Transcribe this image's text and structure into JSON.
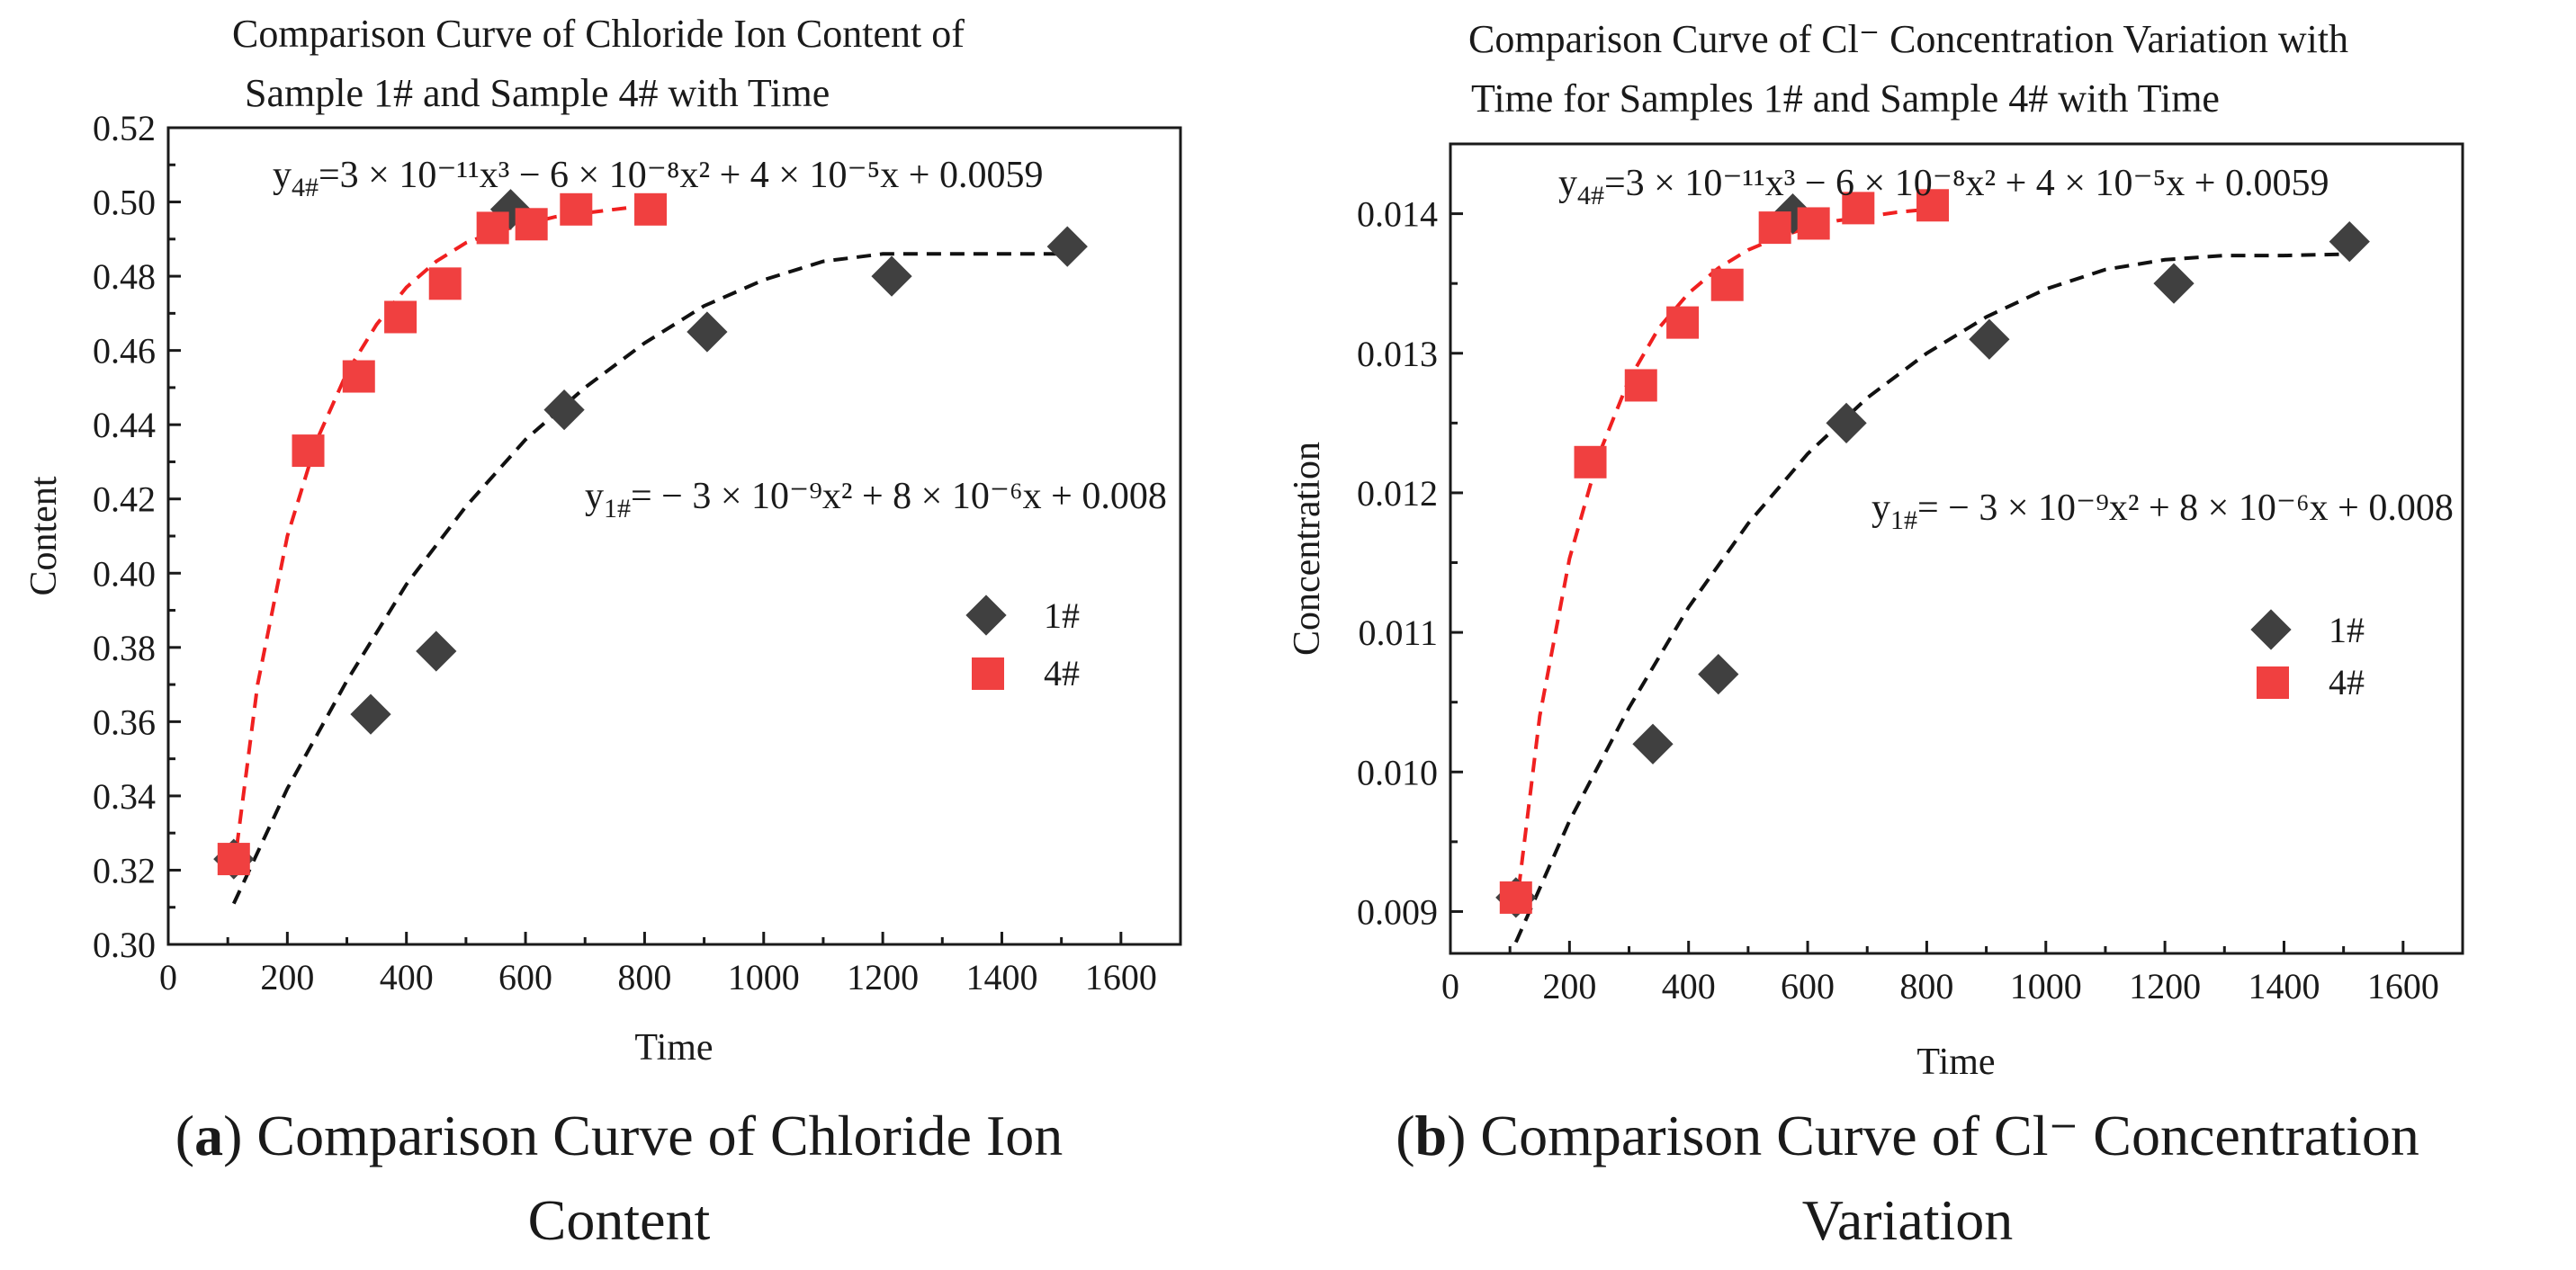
{
  "colors": {
    "series_1": "#404040",
    "series_4": "#f04040",
    "fit_1": "#111111",
    "fit_4": "#f02020",
    "axis": "#1a1a1a"
  },
  "chart_data": [
    {
      "type": "scatter",
      "title_lines": [
        "Comparison Curve of Chloride Ion Content of",
        "Sample 1# and Sample 4# with Time"
      ],
      "xlabel": "Time",
      "ylabel": "Content",
      "xlim": [
        0,
        1700
      ],
      "ylim": [
        0.3,
        0.52
      ],
      "xticks": [
        0,
        200,
        400,
        600,
        800,
        1000,
        1200,
        1400,
        1600
      ],
      "yticks": [
        0.3,
        0.32,
        0.34,
        0.36,
        0.38,
        0.4,
        0.42,
        0.44,
        0.46,
        0.48,
        0.5,
        0.52
      ],
      "ytick_decimals": 2,
      "grid": false,
      "legend_placement": "right",
      "legend": [
        "1#",
        "4#"
      ],
      "series": [
        {
          "name": "1#",
          "marker": "diamond",
          "x": [
            110,
            340,
            450,
            575,
            665,
            905,
            1215,
            1510
          ],
          "y": [
            0.323,
            0.362,
            0.379,
            0.498,
            0.444,
            0.465,
            0.48,
            0.488
          ]
        },
        {
          "name": "4#",
          "marker": "square",
          "x": [
            110,
            235,
            320,
            390,
            465,
            545,
            610,
            685,
            810
          ],
          "y": [
            0.323,
            0.433,
            0.453,
            0.469,
            0.478,
            0.493,
            0.494,
            0.498,
            0.498
          ]
        }
      ],
      "fits": [
        {
          "series": "4#",
          "x": [
            110,
            150,
            200,
            250,
            300,
            350,
            400,
            450,
            500,
            550,
            600,
            650,
            700,
            750,
            800
          ],
          "y": [
            0.32,
            0.37,
            0.41,
            0.436,
            0.454,
            0.467,
            0.477,
            0.484,
            0.489,
            0.492,
            0.494,
            0.496,
            0.497,
            0.498,
            0.499
          ]
        },
        {
          "series": "1#",
          "x": [
            110,
            200,
            300,
            400,
            500,
            600,
            700,
            800,
            900,
            1000,
            1100,
            1200,
            1300,
            1400,
            1500
          ],
          "y": [
            0.311,
            0.342,
            0.371,
            0.397,
            0.418,
            0.436,
            0.45,
            0.462,
            0.472,
            0.479,
            0.484,
            0.486,
            0.486,
            0.486,
            0.486
          ]
        }
      ],
      "equations": {
        "eq4": {
          "prefix": "y",
          "sub": "4#",
          "text": "=3 × 10⁻¹¹x³ − 6 × 10⁻⁸x² + 4 × 10⁻⁵x + 0.0059"
        },
        "eq1": {
          "prefix": "y",
          "sub": "1#",
          "text": "= − 3 × 10⁻⁹x² + 8 × 10⁻⁶x + 0.008"
        }
      },
      "caption": {
        "label": "a",
        "line1": " Comparison Curve of Chloride Ion",
        "line2": "Content"
      }
    },
    {
      "type": "scatter",
      "title_lines": [
        "Comparison Curve of Cl⁻ Concentration Variation with",
        "Time for Samples 1# and Sample 4# with Time"
      ],
      "xlabel": "Time",
      "ylabel": "Concentration",
      "xlim": [
        0,
        1700
      ],
      "ylim": [
        0.0087,
        0.0145
      ],
      "xticks": [
        0,
        200,
        400,
        600,
        800,
        1000,
        1200,
        1400,
        1600
      ],
      "yticks": [
        0.009,
        0.01,
        0.011,
        0.012,
        0.013,
        0.014
      ],
      "ytick_decimals": 3,
      "grid": false,
      "legend_placement": "right",
      "legend": [
        "1#",
        "4#"
      ],
      "series": [
        {
          "name": "1#",
          "marker": "diamond",
          "x": [
            110,
            340,
            450,
            575,
            665,
            905,
            1215,
            1510
          ],
          "y": [
            0.0091,
            0.0102,
            0.0107,
            0.014,
            0.0125,
            0.0131,
            0.0135,
            0.0138
          ]
        },
        {
          "name": "4#",
          "marker": "square",
          "x": [
            110,
            235,
            320,
            390,
            465,
            545,
            610,
            685,
            810
          ],
          "y": [
            0.0091,
            0.01222,
            0.01277,
            0.01322,
            0.01349,
            0.0139,
            0.01393,
            0.01404,
            0.01406
          ]
        }
      ],
      "fits": [
        {
          "series": "4#",
          "x": [
            110,
            150,
            200,
            250,
            300,
            350,
            400,
            450,
            500,
            550,
            600,
            650,
            700,
            750,
            800
          ],
          "y": [
            0.009,
            0.0104,
            0.01153,
            0.01228,
            0.01281,
            0.01318,
            0.01343,
            0.01361,
            0.01374,
            0.01383,
            0.0139,
            0.01395,
            0.01398,
            0.01401,
            0.01403
          ]
        },
        {
          "series": "1#",
          "x": [
            110,
            200,
            300,
            400,
            500,
            600,
            700,
            800,
            900,
            1000,
            1100,
            1200,
            1300,
            1400,
            1500
          ],
          "y": [
            0.00878,
            0.00965,
            0.01046,
            0.01118,
            0.01178,
            0.01228,
            0.01268,
            0.013,
            0.01326,
            0.01346,
            0.0136,
            0.01367,
            0.0137,
            0.0137,
            0.01371
          ]
        }
      ],
      "equations": {
        "eq4": {
          "prefix": "y",
          "sub": "4#",
          "text": "=3 × 10⁻¹¹x³ − 6 × 10⁻⁸x² + 4 × 10⁻⁵x + 0.0059"
        },
        "eq1": {
          "prefix": "y",
          "sub": "1#",
          "text": "= − 3 × 10⁻⁹x² + 8 × 10⁻⁶x + 0.008"
        }
      },
      "caption": {
        "label": "b",
        "line1": " Comparison Curve of Cl⁻ Concentration",
        "line2": "Variation"
      }
    }
  ]
}
